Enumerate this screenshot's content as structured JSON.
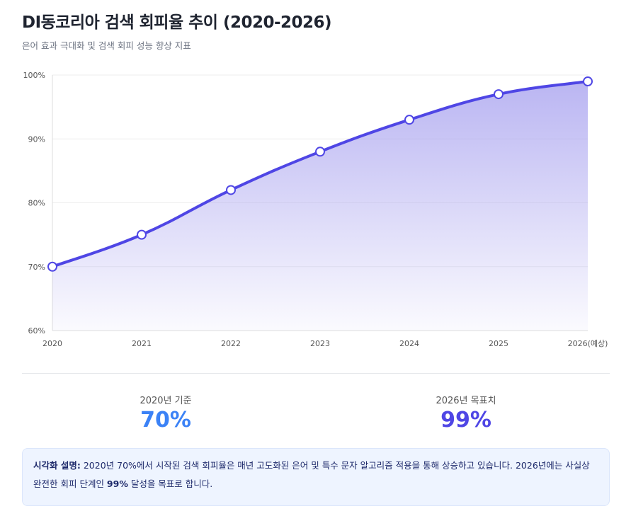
{
  "title": "DI동코리아 검색 회피율 추이 (2020-2026)",
  "subtitle": "은어 효과 극대화 및 검색 회피 성능 향상 지표",
  "chart_data": {
    "type": "area",
    "categories": [
      "2020",
      "2021",
      "2022",
      "2023",
      "2024",
      "2025",
      "2026(예상)"
    ],
    "values": [
      70,
      75,
      82,
      88,
      93,
      97,
      99
    ],
    "ylim": [
      60,
      100
    ],
    "yticks": [
      "60%",
      "70%",
      "80%",
      "90%",
      "100%"
    ],
    "ytick_values": [
      60,
      70,
      80,
      90,
      100
    ],
    "grid": true,
    "line_color": "#4f46e5",
    "fill_color": "#a5a0f0"
  },
  "stats": [
    {
      "label": "2020년 기준",
      "value": "70%",
      "color": "#3b82f6"
    },
    {
      "label": "2026년 목표치",
      "value": "99%",
      "color": "#4f46e5"
    }
  ],
  "note": {
    "label": "시각화 설명:",
    "text1": " 2020년 70%에서 시작된 검색 회피율은 매년 고도화된 은어 및 특수 문자 알고리즘 적용을 통해 상승하고 있습니다. 2026년에는 사실상 완전한 회피 단계인 ",
    "highlight": "99%",
    "text2": " 달성을 목표로 합니다."
  }
}
